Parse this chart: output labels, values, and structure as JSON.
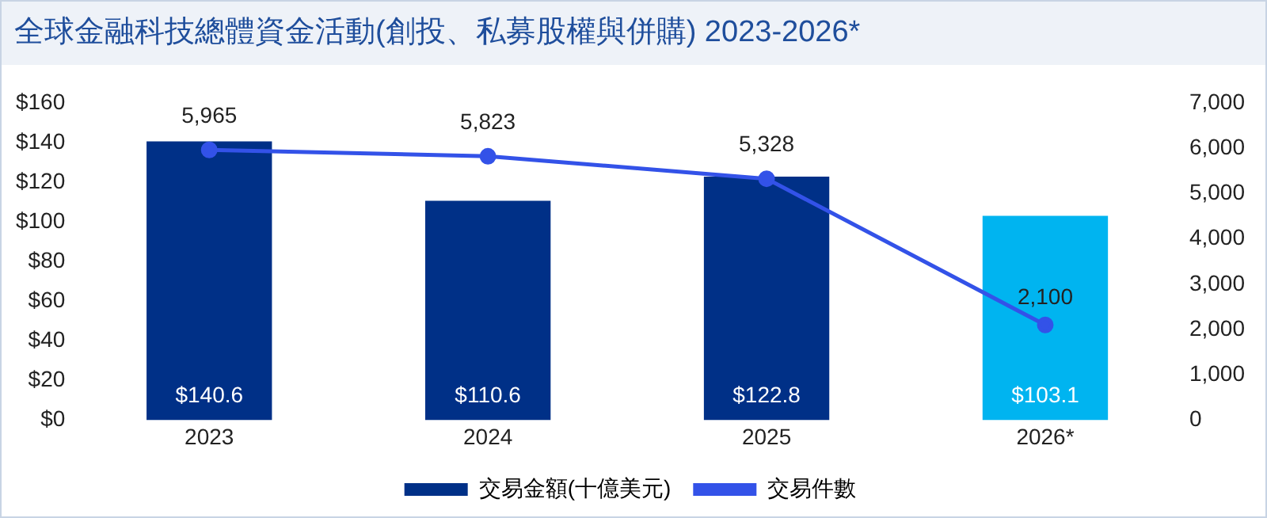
{
  "chart_data": {
    "type": "bar",
    "title": "全球金融科技總體資金活動(創投、私募股權與併購) 2023-2026*",
    "categories": [
      "2023",
      "2024",
      "2025",
      "2026*"
    ],
    "ylim": [
      0,
      160
    ],
    "yticks": [
      {
        "value": 0,
        "label": "$0"
      },
      {
        "value": 20,
        "label": "$20"
      },
      {
        "value": 40,
        "label": "$40"
      },
      {
        "value": 60,
        "label": "$60"
      },
      {
        "value": 80,
        "label": "$80"
      },
      {
        "value": 100,
        "label": "$100"
      },
      {
        "value": 120,
        "label": "$120"
      },
      {
        "value": 140,
        "label": "$140"
      },
      {
        "value": 160,
        "label": "$160"
      }
    ],
    "y2lim": [
      0,
      7000
    ],
    "y2ticks": [
      0,
      {
        "value": 1000,
        "label": "1,000"
      },
      {
        "value": 2000,
        "label": "2,000"
      },
      {
        "value": 3000,
        "label": "3,000"
      },
      {
        "value": 4000,
        "label": "4,000"
      },
      {
        "value": 5000,
        "label": "5,000"
      },
      {
        "value": 6000,
        "label": "6,000"
      },
      {
        "value": 7000,
        "label": "7,000"
      }
    ],
    "series": [
      {
        "name": "交易金額(十億美元)",
        "color": "#003087",
        "colors": [
          "#003087",
          "#003087",
          "#003087",
          "#00b4f0"
        ],
        "values": [
          140.6,
          110.6,
          122.8,
          103.1
        ],
        "value_labels": [
          "$140.6",
          "$110.6",
          "$122.8",
          "$103.1"
        ]
      },
      {
        "name": "交易件數",
        "type": "line",
        "axis": "y2",
        "color": "#3352e8",
        "values": [
          5965,
          5823,
          5328,
          2100
        ],
        "value_labels": [
          "5,965",
          "5,823",
          "5,328",
          "2,100"
        ],
        "marker": "circle",
        "line_style": "solid"
      }
    ],
    "grid": false,
    "legend": "bottom"
  }
}
